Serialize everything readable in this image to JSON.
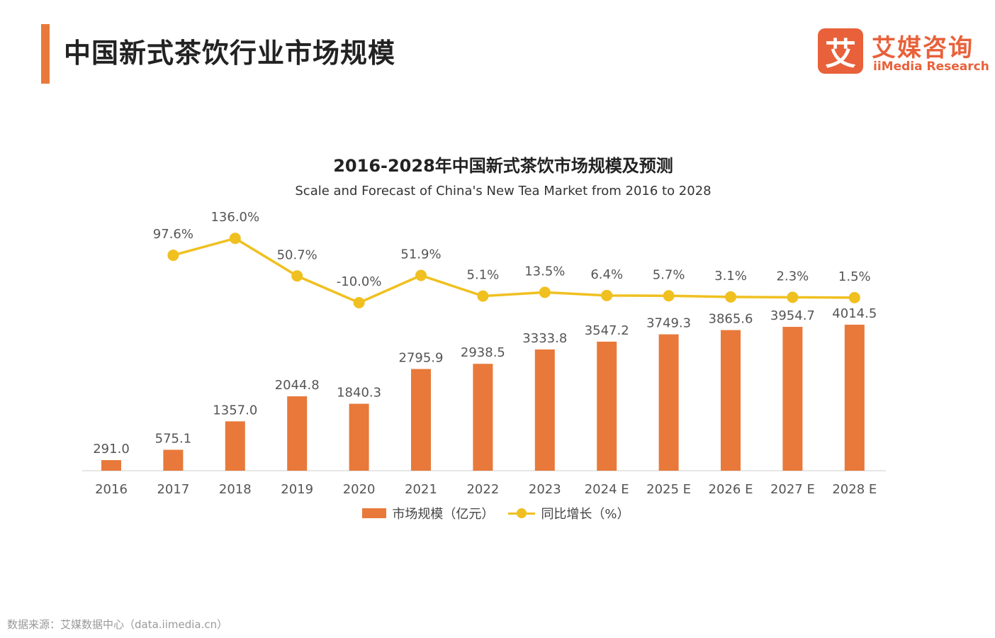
{
  "header": {
    "title": "中国新式茶饮行业市场规模",
    "accent_color": "#e8793a"
  },
  "logo": {
    "mark": "艾",
    "name_cn": "艾媒咨询",
    "name_en": "iiMedia Research",
    "color": "#e8613a"
  },
  "chart_data": {
    "type": "bar",
    "title": "2016-2028年中国新式茶饮市场规模及预测",
    "subtitle": "Scale and Forecast of China's New Tea Market from 2016 to 2028",
    "categories": [
      "2016",
      "2017",
      "2018",
      "2019",
      "2020",
      "2021",
      "2022",
      "2023",
      "2024 E",
      "2025 E",
      "2026 E",
      "2027 E",
      "2028 E"
    ],
    "series": [
      {
        "name": "市场规模（亿元）",
        "type": "bar",
        "color": "#e8793a",
        "values": [
          291.0,
          575.1,
          1357.0,
          2044.8,
          1840.3,
          2795.9,
          2938.5,
          3333.8,
          3547.2,
          3749.3,
          3865.6,
          3954.7,
          4014.5
        ],
        "labels": [
          "291.0",
          "575.1",
          "1357.0",
          "2044.8",
          "1840.3",
          "2795.9",
          "2938.5",
          "3333.8",
          "3547.2",
          "3749.3",
          "3865.6",
          "3954.7",
          "4014.5"
        ]
      },
      {
        "name": "同比增长（%）",
        "type": "line",
        "color": "#f0c020",
        "values": [
          null,
          97.6,
          136.0,
          50.7,
          -10.0,
          51.9,
          5.1,
          13.5,
          6.4,
          5.7,
          3.1,
          2.3,
          1.5
        ],
        "labels": [
          null,
          "97.6%",
          "136.0%",
          "50.7%",
          "-10.0%",
          "51.9%",
          "5.1%",
          "13.5%",
          "6.4%",
          "5.7%",
          "3.1%",
          "2.3%",
          "1.5%"
        ]
      }
    ],
    "legend_position": "bottom",
    "grid": false
  },
  "footer": {
    "source": "数据来源：艾媒数据中心（data.iimedia.cn）"
  }
}
